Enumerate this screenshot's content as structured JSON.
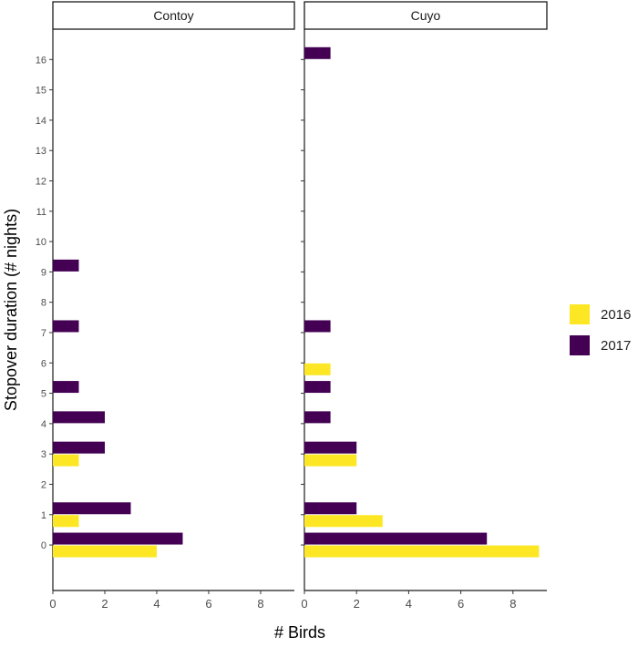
{
  "chart_data": {
    "type": "bar",
    "orientation": "horizontal",
    "xlabel": "# Birds",
    "ylabel": "Stopover duration (# nights)",
    "xlim": [
      0,
      9.3
    ],
    "ylim": [
      -1.5,
      17.0
    ],
    "x_ticks": [
      0,
      2,
      4,
      6,
      8
    ],
    "y_ticks": [
      0,
      1,
      2,
      3,
      4,
      5,
      6,
      7,
      8,
      9,
      10,
      11,
      12,
      13,
      14,
      15,
      16
    ],
    "grid": false,
    "legend_position": "right",
    "series_names": [
      "2016",
      "2017"
    ],
    "colors": {
      "2016": "#FDE725",
      "2017": "#440154"
    },
    "panels": [
      {
        "name": "Contoy",
        "bars": [
          {
            "year": "2016",
            "y": 0,
            "value": 4
          },
          {
            "year": "2017",
            "y": 0,
            "value": 5
          },
          {
            "year": "2016",
            "y": 1,
            "value": 1
          },
          {
            "year": "2017",
            "y": 1,
            "value": 3
          },
          {
            "year": "2016",
            "y": 3,
            "value": 1
          },
          {
            "year": "2017",
            "y": 3,
            "value": 2
          },
          {
            "year": "2017",
            "y": 4,
            "value": 2
          },
          {
            "year": "2017",
            "y": 5,
            "value": 1
          },
          {
            "year": "2017",
            "y": 7,
            "value": 1
          },
          {
            "year": "2017",
            "y": 9,
            "value": 1
          }
        ]
      },
      {
        "name": "Cuyo",
        "bars": [
          {
            "year": "2016",
            "y": 0,
            "value": 9
          },
          {
            "year": "2017",
            "y": 0,
            "value": 7
          },
          {
            "year": "2016",
            "y": 1,
            "value": 3
          },
          {
            "year": "2017",
            "y": 1,
            "value": 2
          },
          {
            "year": "2016",
            "y": 3,
            "value": 2
          },
          {
            "year": "2017",
            "y": 3,
            "value": 2
          },
          {
            "year": "2017",
            "y": 4,
            "value": 1
          },
          {
            "year": "2017",
            "y": 5,
            "value": 1
          },
          {
            "year": "2016",
            "y": 6,
            "value": 1
          },
          {
            "year": "2017",
            "y": 7,
            "value": 1
          },
          {
            "year": "2017",
            "y": 16,
            "value": 1
          }
        ]
      }
    ]
  }
}
